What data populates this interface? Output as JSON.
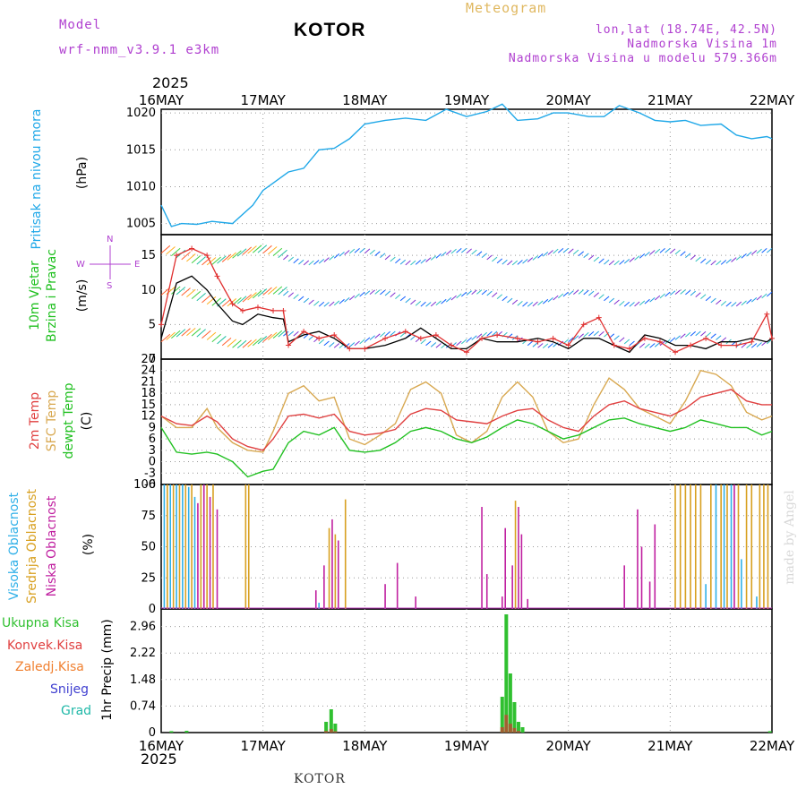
{
  "header": {
    "model_label": "Model",
    "model_name": "wrf-nmm_v3.9.1 e3km",
    "title": "KOTOR",
    "meteogram_label": "Meteogram",
    "coords": "lon,lat (18.74E, 42.5N)",
    "altitude": "Nadmorska Visina 1m",
    "model_altitude": "Nadmorska Visina u modelu 579.366m"
  },
  "year_top": "2025",
  "year_bottom": "2025",
  "footer_label": "KOTOR",
  "watermark": "made by Angel",
  "colors": {
    "pressure": "#20a8e8",
    "wind": "#000000",
    "gust": "#e03030",
    "temp2m": "#e04040",
    "sfc": "#d8a850",
    "dew": "#20c020",
    "high_cloud": "#30b0e8",
    "mid_cloud": "#d8a020",
    "low_cloud": "#c020a0",
    "total_precip": "#30c030",
    "conv_precip": "#e04040"
  },
  "chart_data": [
    {
      "type": "line",
      "panel": "pressure",
      "ylabel": "Pritisak na nivou mora",
      "units": "(hPa)",
      "ylim": [
        1003.5,
        1020.5
      ],
      "yticks": [
        1005,
        1010,
        1015,
        1020
      ],
      "x_dates": [
        "16MAY",
        "17MAY",
        "18MAY",
        "19MAY",
        "20MAY",
        "21MAY",
        "22MAY"
      ],
      "x_days": [
        0,
        0.1,
        0.2,
        0.35,
        0.5,
        0.7,
        0.9,
        1.0,
        1.1,
        1.25,
        1.4,
        1.55,
        1.7,
        1.85,
        2.0,
        2.2,
        2.4,
        2.6,
        2.8,
        3.0,
        3.2,
        3.35,
        3.5,
        3.7,
        3.85,
        4.0,
        4.2,
        4.35,
        4.5,
        4.7,
        4.85,
        5.0,
        5.15,
        5.3,
        5.5,
        5.65,
        5.8,
        5.95,
        6.0
      ],
      "values": [
        1007.5,
        1004.6,
        1005.0,
        1004.9,
        1005.3,
        1005.0,
        1007.5,
        1009.5,
        1010.5,
        1012.0,
        1012.5,
        1015.0,
        1015.2,
        1016.5,
        1018.5,
        1019.0,
        1019.3,
        1019.0,
        1020.5,
        1019.5,
        1020.2,
        1021.2,
        1019.0,
        1019.2,
        1020.0,
        1020.0,
        1019.5,
        1019.5,
        1021.0,
        1020.0,
        1019.0,
        1018.8,
        1019.0,
        1018.3,
        1018.5,
        1017.0,
        1016.5,
        1016.8,
        1016.5
      ]
    },
    {
      "type": "line",
      "panel": "wind",
      "ylabel": "10m Vjetar",
      "ylabel2": "Brzina i Pravac",
      "units": "(m/s)",
      "ylim": [
        0,
        18
      ],
      "yticks": [
        0,
        5,
        10,
        15
      ],
      "compass": {
        "n": "N",
        "w": "W",
        "e": "E",
        "s": "S"
      },
      "x_days": [
        0,
        0.15,
        0.3,
        0.45,
        0.55,
        0.7,
        0.8,
        0.95,
        1.1,
        1.2,
        1.25,
        1.4,
        1.55,
        1.7,
        1.85,
        2.0,
        2.2,
        2.4,
        2.55,
        2.7,
        2.85,
        3.0,
        3.15,
        3.3,
        3.5,
        3.7,
        3.85,
        4.0,
        4.15,
        4.3,
        4.45,
        4.6,
        4.75,
        4.9,
        5.05,
        5.2,
        5.35,
        5.5,
        5.65,
        5.8,
        5.95,
        6.0
      ],
      "series": [
        {
          "name": "speed",
          "values": [
            3,
            11,
            12,
            10,
            8,
            5.5,
            5,
            6.5,
            6,
            5.8,
            2.5,
            3.5,
            4,
            3,
            1.5,
            1.5,
            2,
            3,
            4.5,
            3,
            1.5,
            1.5,
            3,
            2.5,
            2.5,
            3,
            2.5,
            1.5,
            3,
            3,
            2,
            1,
            3.5,
            3,
            2,
            2,
            1.5,
            2.5,
            2.5,
            3,
            2.5,
            3
          ]
        },
        {
          "name": "gust",
          "values": [
            5,
            15,
            16,
            15,
            12,
            8,
            7,
            7.5,
            7,
            7,
            2,
            4,
            3,
            3.5,
            1.5,
            1.5,
            3,
            4,
            3,
            3.5,
            2,
            1,
            3,
            3.5,
            3,
            2.5,
            3,
            2,
            5,
            6,
            2,
            1.5,
            3,
            2.5,
            1,
            2,
            3,
            2,
            2,
            2.5,
            6.5,
            3
          ]
        }
      ],
      "bands": [
        2.5,
        8.5,
        14.5
      ]
    },
    {
      "type": "line",
      "panel": "temperature",
      "ylabel": "2m Temp",
      "ylabel2": "SFC Temp",
      "ylabel3": "dewpt Temp",
      "units": "(C)",
      "ylim": [
        -6,
        27
      ],
      "yticks": [
        -6,
        -3,
        0,
        3,
        6,
        9,
        12,
        15,
        18,
        21,
        24,
        27
      ],
      "x_days": [
        0,
        0.15,
        0.3,
        0.45,
        0.55,
        0.7,
        0.85,
        1.0,
        1.1,
        1.25,
        1.4,
        1.55,
        1.7,
        1.85,
        2.0,
        2.15,
        2.3,
        2.45,
        2.6,
        2.75,
        2.9,
        3.05,
        3.2,
        3.35,
        3.5,
        3.65,
        3.8,
        3.95,
        4.1,
        4.25,
        4.4,
        4.55,
        4.7,
        4.85,
        5.0,
        5.15,
        5.3,
        5.45,
        5.6,
        5.75,
        5.9,
        6.0
      ],
      "series": [
        {
          "name": "2m",
          "values": [
            12,
            10,
            9.5,
            12,
            10.5,
            6,
            4,
            3,
            6,
            12,
            12.5,
            11.5,
            12.5,
            8,
            7,
            7.5,
            8.5,
            12.5,
            14,
            13.5,
            11,
            10.5,
            10,
            12,
            13.5,
            14,
            11,
            9,
            8,
            12,
            15,
            16,
            14,
            13,
            12,
            14,
            17,
            18,
            19,
            16,
            15,
            15
          ]
        },
        {
          "name": "sfc",
          "values": [
            12,
            9,
            9,
            14,
            9,
            5,
            3,
            2.5,
            8,
            18,
            20,
            16,
            17,
            6,
            4.5,
            7,
            10,
            19,
            21,
            18,
            7,
            5,
            8,
            17,
            21,
            17,
            8,
            5,
            6,
            15,
            22,
            19,
            14,
            12,
            10,
            16,
            24,
            23,
            20,
            13,
            11,
            12
          ]
        },
        {
          "name": "dew",
          "values": [
            9,
            2.5,
            2,
            2.5,
            2,
            0,
            -4,
            -2.5,
            -2,
            5,
            8,
            7,
            9,
            3,
            2.5,
            3,
            5,
            8,
            9,
            8,
            6,
            5,
            6.5,
            9,
            11,
            10,
            8,
            6,
            7,
            9,
            11,
            11.5,
            10,
            9,
            8,
            9,
            11,
            10,
            9,
            9,
            7,
            8
          ]
        }
      ]
    },
    {
      "type": "bar",
      "panel": "cloud",
      "ylabel": "Visoka Oblacnost",
      "ylabel2": "Srednja Oblacnost",
      "ylabel3": "Niska Oblacnost",
      "units": "(%)",
      "ylim": [
        0,
        100
      ],
      "yticks": [
        0,
        25,
        50,
        75,
        100
      ],
      "bars": [
        {
          "day": 0.03,
          "series": "high",
          "value": 100
        },
        {
          "day": 0.06,
          "series": "mid",
          "value": 100
        },
        {
          "day": 0.09,
          "series": "high",
          "value": 100
        },
        {
          "day": 0.12,
          "series": "mid",
          "value": 100
        },
        {
          "day": 0.15,
          "series": "high",
          "value": 100
        },
        {
          "day": 0.18,
          "series": "mid",
          "value": 100
        },
        {
          "day": 0.21,
          "series": "high",
          "value": 100
        },
        {
          "day": 0.24,
          "series": "mid",
          "value": 100
        },
        {
          "day": 0.27,
          "series": "high",
          "value": 98
        },
        {
          "day": 0.3,
          "series": "mid",
          "value": 100
        },
        {
          "day": 0.33,
          "series": "high",
          "value": 90
        },
        {
          "day": 0.36,
          "series": "low",
          "value": 85
        },
        {
          "day": 0.39,
          "series": "mid",
          "value": 100
        },
        {
          "day": 0.42,
          "series": "low",
          "value": 100
        },
        {
          "day": 0.45,
          "series": "mid",
          "value": 100
        },
        {
          "day": 0.48,
          "series": "low",
          "value": 90
        },
        {
          "day": 0.51,
          "series": "mid",
          "value": 100
        },
        {
          "day": 0.55,
          "series": "low",
          "value": 80
        },
        {
          "day": 0.83,
          "series": "mid",
          "value": 100
        },
        {
          "day": 0.86,
          "series": "mid",
          "value": 100
        },
        {
          "day": 1.52,
          "series": "low",
          "value": 15
        },
        {
          "day": 1.55,
          "series": "high",
          "value": 5
        },
        {
          "day": 1.6,
          "series": "low",
          "value": 35
        },
        {
          "day": 1.65,
          "series": "mid",
          "value": 65
        },
        {
          "day": 1.68,
          "series": "low",
          "value": 72
        },
        {
          "day": 1.71,
          "series": "mid",
          "value": 60
        },
        {
          "day": 1.74,
          "series": "low",
          "value": 55
        },
        {
          "day": 1.81,
          "series": "mid",
          "value": 88
        },
        {
          "day": 2.2,
          "series": "low",
          "value": 20
        },
        {
          "day": 2.32,
          "series": "low",
          "value": 37
        },
        {
          "day": 2.5,
          "series": "low",
          "value": 10
        },
        {
          "day": 3.15,
          "series": "low",
          "value": 82
        },
        {
          "day": 3.2,
          "series": "low",
          "value": 28
        },
        {
          "day": 3.35,
          "series": "low",
          "value": 10
        },
        {
          "day": 3.38,
          "series": "low",
          "value": 65
        },
        {
          "day": 3.45,
          "series": "low",
          "value": 35
        },
        {
          "day": 3.48,
          "series": "mid",
          "value": 87
        },
        {
          "day": 3.51,
          "series": "low",
          "value": 82
        },
        {
          "day": 3.54,
          "series": "low",
          "value": 60
        },
        {
          "day": 3.6,
          "series": "low",
          "value": 8
        },
        {
          "day": 4.55,
          "series": "low",
          "value": 35
        },
        {
          "day": 4.68,
          "series": "low",
          "value": 80
        },
        {
          "day": 4.72,
          "series": "low",
          "value": 50
        },
        {
          "day": 4.8,
          "series": "low",
          "value": 22
        },
        {
          "day": 4.85,
          "series": "low",
          "value": 68
        },
        {
          "day": 5.05,
          "series": "mid",
          "value": 100
        },
        {
          "day": 5.1,
          "series": "mid",
          "value": 100
        },
        {
          "day": 5.15,
          "series": "mid",
          "value": 100
        },
        {
          "day": 5.2,
          "series": "mid",
          "value": 100
        },
        {
          "day": 5.25,
          "series": "mid",
          "value": 100
        },
        {
          "day": 5.3,
          "series": "mid",
          "value": 100
        },
        {
          "day": 5.35,
          "series": "high",
          "value": 20
        },
        {
          "day": 5.4,
          "series": "mid",
          "value": 100
        },
        {
          "day": 5.45,
          "series": "high",
          "value": 100
        },
        {
          "day": 5.5,
          "series": "mid",
          "value": 100
        },
        {
          "day": 5.53,
          "series": "high",
          "value": 100
        },
        {
          "day": 5.56,
          "series": "mid",
          "value": 100
        },
        {
          "day": 5.6,
          "series": "high",
          "value": 100
        },
        {
          "day": 5.63,
          "series": "low",
          "value": 100
        },
        {
          "day": 5.67,
          "series": "mid",
          "value": 100
        },
        {
          "day": 5.7,
          "series": "high",
          "value": 40
        },
        {
          "day": 5.75,
          "series": "mid",
          "value": 100
        },
        {
          "day": 5.8,
          "series": "mid",
          "value": 100
        },
        {
          "day": 5.85,
          "series": "high",
          "value": 10
        },
        {
          "day": 5.88,
          "series": "mid",
          "value": 100
        },
        {
          "day": 5.92,
          "series": "mid",
          "value": 100
        },
        {
          "day": 5.96,
          "series": "mid",
          "value": 100
        }
      ]
    },
    {
      "type": "bar",
      "panel": "precipitation",
      "ylabel": "1hr Precip (mm)",
      "units": "(mm)",
      "ylim": [
        0,
        3.45
      ],
      "yticks": [
        0,
        0.74,
        1.48,
        2.22,
        2.96
      ],
      "legend": [
        "Ukupna Kisa",
        "Konvek.Kisa",
        "Zaledj.Kisa",
        "Snijeg",
        "Grad"
      ],
      "legend_colors": [
        "#30c030",
        "#e04040",
        "#f08030",
        "#4040d0",
        "#20b8a8"
      ],
      "bars": [
        {
          "day": 0.1,
          "value": 0.04
        },
        {
          "day": 0.25,
          "value": 0.05
        },
        {
          "day": 1.62,
          "value": 0.3
        },
        {
          "day": 1.67,
          "value": 0.65
        },
        {
          "day": 1.71,
          "value": 0.25
        },
        {
          "day": 3.35,
          "value": 1.0
        },
        {
          "day": 3.39,
          "value": 3.3
        },
        {
          "day": 3.43,
          "value": 1.65
        },
        {
          "day": 3.47,
          "value": 0.85
        },
        {
          "day": 3.51,
          "value": 0.3
        },
        {
          "day": 3.55,
          "value": 0.15
        },
        {
          "day": 5.98,
          "value": 0.04
        }
      ]
    }
  ]
}
